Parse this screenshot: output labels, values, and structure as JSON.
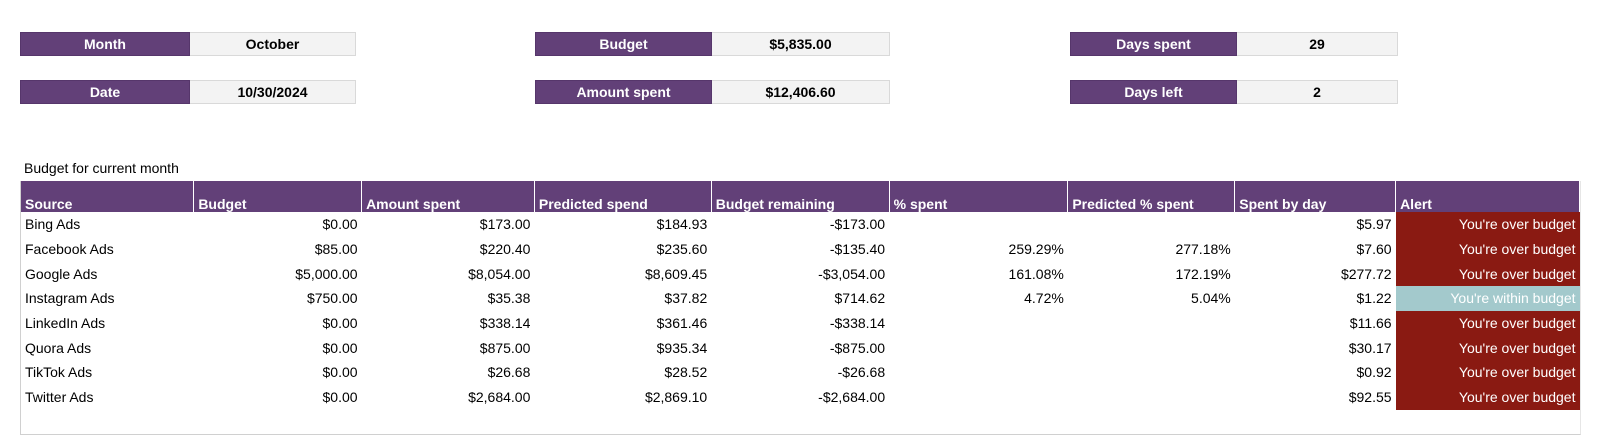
{
  "summary": {
    "month": {
      "label": "Month",
      "value": "October"
    },
    "date": {
      "label": "Date",
      "value": "10/30/2024"
    },
    "budget": {
      "label": "Budget",
      "value": "$5,835.00"
    },
    "amount_spent": {
      "label": "Amount spent",
      "value": "$12,406.60"
    },
    "days_spent": {
      "label": "Days spent",
      "value": "29"
    },
    "days_left": {
      "label": "Days left",
      "value": "2"
    }
  },
  "table": {
    "caption": "Budget for current month",
    "headers": [
      "Source",
      "Budget",
      "Amount spent",
      "Predicted spend",
      "Budget remaining",
      "% spent",
      "Predicted % spent",
      "Spent by day",
      "Alert"
    ],
    "rows": [
      {
        "source": "Bing Ads",
        "budget": "$0.00",
        "amount_spent": "$173.00",
        "predicted_spend": "$184.93",
        "budget_remaining": "-$173.00",
        "pct_spent": "",
        "predicted_pct_spent": "",
        "spent_by_day": "$5.97",
        "alert": "You're over budget",
        "alert_status": "over"
      },
      {
        "source": "Facebook Ads",
        "budget": "$85.00",
        "amount_spent": "$220.40",
        "predicted_spend": "$235.60",
        "budget_remaining": "-$135.40",
        "pct_spent": "259.29%",
        "predicted_pct_spent": "277.18%",
        "spent_by_day": "$7.60",
        "alert": "You're over budget",
        "alert_status": "over"
      },
      {
        "source": "Google Ads",
        "budget": "$5,000.00",
        "amount_spent": "$8,054.00",
        "predicted_spend": "$8,609.45",
        "budget_remaining": "-$3,054.00",
        "pct_spent": "161.08%",
        "predicted_pct_spent": "172.19%",
        "spent_by_day": "$277.72",
        "alert": "You're over budget",
        "alert_status": "over"
      },
      {
        "source": "Instagram Ads",
        "budget": "$750.00",
        "amount_spent": "$35.38",
        "predicted_spend": "$37.82",
        "budget_remaining": "$714.62",
        "pct_spent": "4.72%",
        "predicted_pct_spent": "5.04%",
        "spent_by_day": "$1.22",
        "alert": "You're within budget",
        "alert_status": "within"
      },
      {
        "source": "LinkedIn Ads",
        "budget": "$0.00",
        "amount_spent": "$338.14",
        "predicted_spend": "$361.46",
        "budget_remaining": "-$338.14",
        "pct_spent": "",
        "predicted_pct_spent": "",
        "spent_by_day": "$11.66",
        "alert": "You're over budget",
        "alert_status": "over"
      },
      {
        "source": "Quora Ads",
        "budget": "$0.00",
        "amount_spent": "$875.00",
        "predicted_spend": "$935.34",
        "budget_remaining": "-$875.00",
        "pct_spent": "",
        "predicted_pct_spent": "",
        "spent_by_day": "$30.17",
        "alert": "You're over budget",
        "alert_status": "over"
      },
      {
        "source": "TikTok Ads",
        "budget": "$0.00",
        "amount_spent": "$26.68",
        "predicted_spend": "$28.52",
        "budget_remaining": "-$26.68",
        "pct_spent": "",
        "predicted_pct_spent": "",
        "spent_by_day": "$0.92",
        "alert": "You're over budget",
        "alert_status": "over"
      },
      {
        "source": "Twitter Ads",
        "budget": "$0.00",
        "amount_spent": "$2,684.00",
        "predicted_spend": "$2,869.10",
        "budget_remaining": "-$2,684.00",
        "pct_spent": "",
        "predicted_pct_spent": "",
        "spent_by_day": "$92.55",
        "alert": "You're over budget",
        "alert_status": "over"
      }
    ]
  },
  "colors": {
    "header_purple": "#624078",
    "value_gray": "#f3f3f3",
    "over_budget": "#8a1a12",
    "within_budget": "#a3c9cc"
  }
}
